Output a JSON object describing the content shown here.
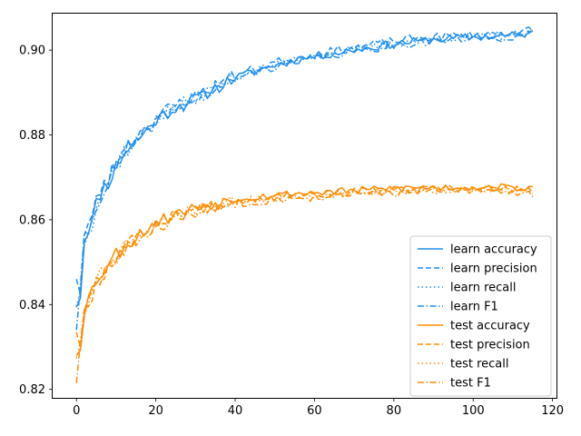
{
  "chart_data": {
    "type": "line",
    "title": "",
    "xlabel": "",
    "ylabel": "",
    "xlim": [
      -6,
      121
    ],
    "ylim": [
      0.818,
      0.9086
    ],
    "xticks": [
      0,
      20,
      40,
      60,
      80,
      100,
      120
    ],
    "yticks": [
      0.82,
      0.84,
      0.86,
      0.88,
      0.9
    ],
    "grid": false,
    "legend_position": "lower-right",
    "colors": {
      "learn": "#1f8fef",
      "test": "#ff8c00"
    },
    "anchors": {
      "learn": {
        "x": [
          0,
          1,
          2,
          3,
          4,
          5,
          6,
          8,
          10,
          12,
          15,
          20,
          25,
          30,
          35,
          40,
          45,
          50,
          55,
          60,
          70,
          80,
          90,
          100,
          110,
          115
        ],
        "y": [
          0.8405,
          0.8425,
          0.8555,
          0.8585,
          0.8595,
          0.8635,
          0.8665,
          0.869,
          0.8725,
          0.876,
          0.8785,
          0.8835,
          0.8865,
          0.8885,
          0.891,
          0.8935,
          0.895,
          0.8965,
          0.8975,
          0.8985,
          0.9,
          0.9015,
          0.9025,
          0.903,
          0.9035,
          0.904
        ]
      },
      "test": {
        "x": [
          0,
          1,
          2,
          3,
          4,
          5,
          6,
          8,
          10,
          12,
          15,
          20,
          25,
          30,
          35,
          40,
          45,
          50,
          55,
          60,
          70,
          80,
          90,
          100,
          110,
          115
        ],
        "y": [
          0.8285,
          0.8305,
          0.8385,
          0.841,
          0.843,
          0.8455,
          0.847,
          0.849,
          0.8515,
          0.8535,
          0.8555,
          0.859,
          0.861,
          0.8625,
          0.8635,
          0.8645,
          0.865,
          0.8655,
          0.8658,
          0.866,
          0.8665,
          0.867,
          0.8672,
          0.8673,
          0.8672,
          0.8668
        ]
      }
    },
    "series": [
      {
        "name": "learn accuracy",
        "group": "learn",
        "style": "solid",
        "offset": 0.0,
        "noise": 0.0012,
        "seed": 11
      },
      {
        "name": "learn precision",
        "group": "learn",
        "style": "dashed",
        "offset": 0.0006,
        "noise": 0.0013,
        "seed": 23,
        "start_y": 0.846
      },
      {
        "name": "learn recall",
        "group": "learn",
        "style": "dotted",
        "offset": 0.0001,
        "noise": 0.0012,
        "seed": 37
      },
      {
        "name": "learn F1",
        "group": "learn",
        "style": "dashdot",
        "offset": -0.0003,
        "noise": 0.0013,
        "seed": 41,
        "start_y": 0.834
      },
      {
        "name": "test accuracy",
        "group": "test",
        "style": "solid",
        "offset": 0.0004,
        "noise": 0.0011,
        "seed": 53
      },
      {
        "name": "test precision",
        "group": "test",
        "style": "dashed",
        "offset": 0.0,
        "noise": 0.0012,
        "seed": 67,
        "start_y": 0.8335
      },
      {
        "name": "test recall",
        "group": "test",
        "style": "dotted",
        "offset": -0.0002,
        "noise": 0.0011,
        "seed": 71
      },
      {
        "name": "test F1",
        "group": "test",
        "style": "dashdot",
        "offset": -0.0006,
        "noise": 0.0013,
        "seed": 83,
        "start_y": 0.8215
      }
    ]
  }
}
